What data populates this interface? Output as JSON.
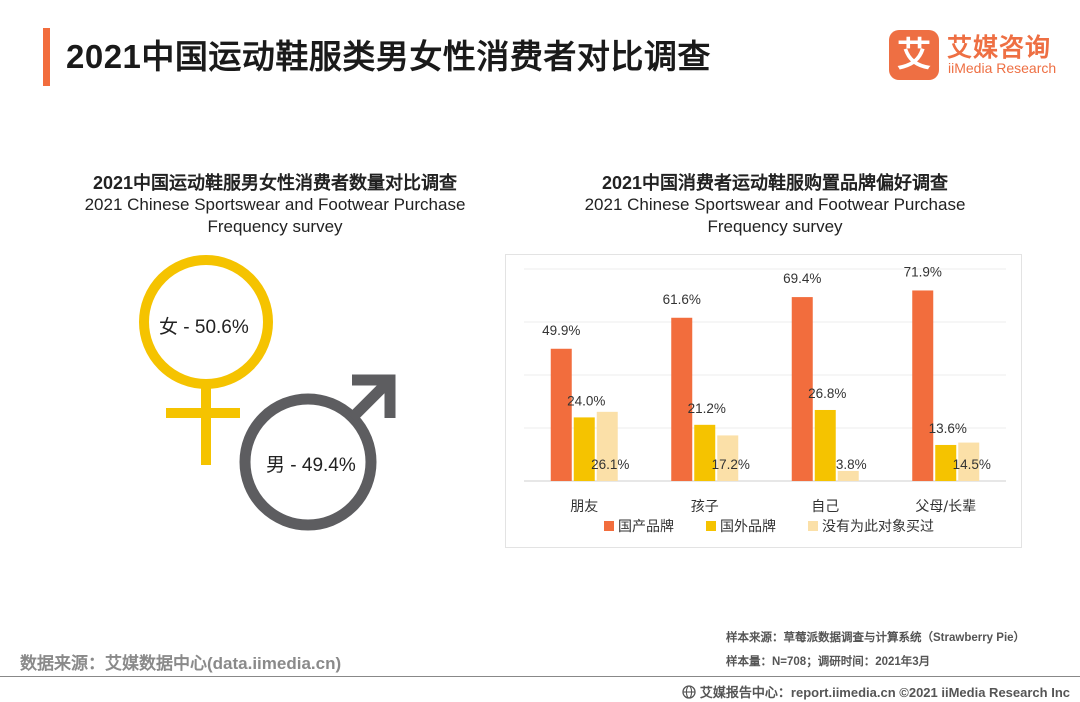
{
  "header": {
    "title": "2021中国运动鞋服类男女性消费者对比调查"
  },
  "logo": {
    "mark": "艾",
    "cn": "艾媒咨询",
    "en": "iiMedia Research",
    "color": "#ee6f43"
  },
  "left_panel": {
    "title_cn": "2021中国运动鞋服男女性消费者数量对比调查",
    "title_en_line1": "2021 Chinese Sportswear and Footwear Purchase",
    "title_en_line2": "Frequency survey",
    "female": {
      "label": "女 - 50.6%",
      "value": 50.6,
      "color": "#f5c300"
    },
    "male": {
      "label": "男 - 49.4%",
      "value": 49.4,
      "color": "#5d5d60"
    }
  },
  "right_panel": {
    "title_cn": "2021中国消费者运动鞋服购置品牌偏好调查",
    "title_en_line1": "2021 Chinese Sportswear and Footwear Purchase",
    "title_en_line2": "Frequency survey"
  },
  "chart_data": [
    {
      "type": "pie",
      "title": "2021中国运动鞋服男女性消费者数量对比调查",
      "categories": [
        "女",
        "男"
      ],
      "values": [
        50.6,
        49.4
      ],
      "unit": "%"
    },
    {
      "type": "bar",
      "title": "2021中国消费者运动鞋服购置品牌偏好调查",
      "categories": [
        "朋友",
        "孩子",
        "自己",
        "父母/长辈"
      ],
      "series": [
        {
          "name": "国产品牌",
          "values": [
            49.9,
            61.6,
            69.4,
            71.9
          ],
          "color": "#f26d3d"
        },
        {
          "name": "国外品牌",
          "values": [
            24.0,
            21.2,
            26.8,
            13.6
          ],
          "color": "#f5c300"
        },
        {
          "name": "没有为此对象买过",
          "values": [
            26.1,
            17.2,
            3.8,
            14.5
          ],
          "color": "#fbe0a8"
        }
      ],
      "value_labels": [
        [
          "49.9%",
          "61.6%",
          "69.4%",
          "71.9%"
        ],
        [
          "24.0%",
          "21.2%",
          "26.8%",
          "13.6%"
        ],
        [
          "26.1%",
          "17.2%",
          "3.8%",
          "14.5%"
        ]
      ],
      "ylim": [
        0,
        80
      ],
      "grid": true,
      "legend_position": "bottom"
    }
  ],
  "footer": {
    "data_source": "数据来源：艾媒数据中心(data.iimedia.cn)",
    "sample_source": "样本来源：草莓派数据调查与计算系统（Strawberry Pie）",
    "sample_size": "样本量：N=708；调研时间：2021年3月",
    "copyright": "艾媒报告中心：report.iimedia.cn   ©2021  iiMedia Research  Inc"
  }
}
